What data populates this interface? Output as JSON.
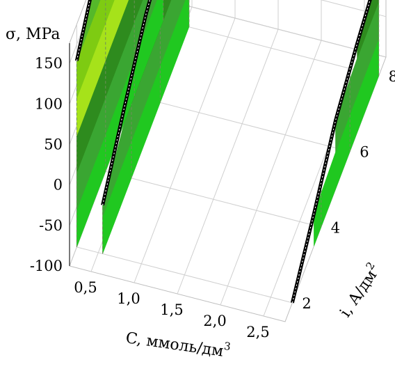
{
  "chart_data": {
    "type": "area",
    "view": "3d",
    "title": "",
    "zlabel": "σ, MPa",
    "xlabel": "C, ммоль/дм",
    "xlabel_sup": "3",
    "ylabel": "i, А/дм",
    "ylabel_sup": "2",
    "x_ticks": [
      "0,5",
      "1,0",
      "1,5",
      "2,0",
      "2,5"
    ],
    "y_ticks": [
      "2",
      "4",
      "6",
      "8"
    ],
    "z_ticks": [
      "150",
      "100",
      "50",
      "0",
      "-50",
      "-100"
    ],
    "xlim": [
      0.25,
      2.75
    ],
    "ylim": [
      1.5,
      8.5
    ],
    "zlim": [
      -100,
      175
    ],
    "band_colors": [
      "#20c820",
      "#3aa632",
      "#2e8b1e",
      "#a6e21a",
      "#7ecb12",
      "#55b82a"
    ],
    "series": [
      {
        "x": 0.25,
        "points": [
          {
            "i": 2.0,
            "sigma": 130
          },
          {
            "i": 3.0,
            "sigma": 165
          },
          {
            "i": 5.0,
            "sigma": 180
          },
          {
            "i": 8.0,
            "sigma": 205
          }
        ]
      },
      {
        "x": 0.55,
        "points": [
          {
            "i": 2.0,
            "sigma": -40
          },
          {
            "i": 3.5,
            "sigma": 10
          },
          {
            "i": 5.0,
            "sigma": 55
          },
          {
            "i": 8.0,
            "sigma": 110
          }
        ]
      },
      {
        "x": 2.75,
        "points": [
          {
            "i": 2.0,
            "sigma": -100
          },
          {
            "i": 3.5,
            "sigma": -60
          },
          {
            "i": 5.0,
            "sigma": -15
          },
          {
            "i": 6.5,
            "sigma": 10
          },
          {
            "i": 8.0,
            "sigma": 30
          }
        ]
      }
    ]
  }
}
